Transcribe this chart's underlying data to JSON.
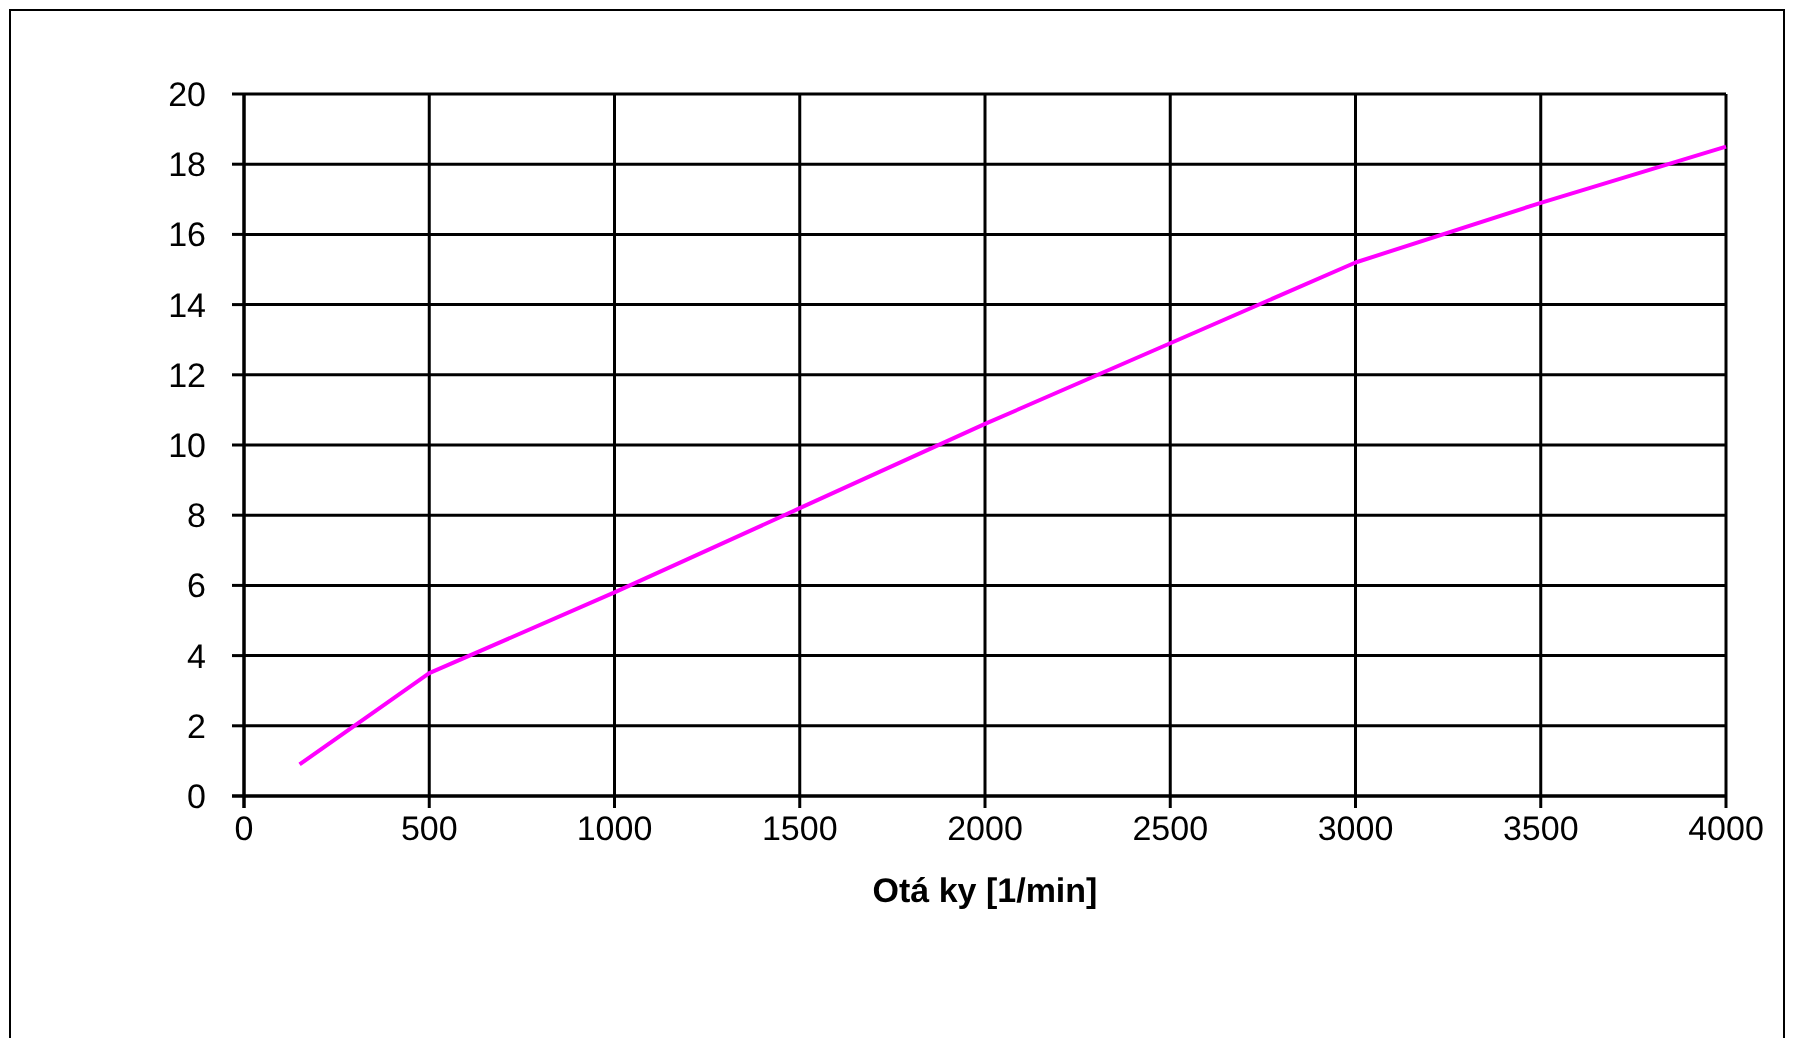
{
  "chart_data": {
    "type": "line",
    "xlabel": "Otá ky [1/min]",
    "x": [
      150,
      500,
      1000,
      1500,
      2000,
      2500,
      3000,
      3500,
      4000
    ],
    "series": [
      {
        "color": "#ff00ff",
        "values": [
          0.9,
          3.5,
          5.8,
          8.2,
          10.6,
          12.9,
          15.2,
          16.9,
          18.5
        ]
      }
    ],
    "xlim": [
      0,
      4000
    ],
    "xticks": [
      0,
      500,
      1000,
      1500,
      2000,
      2500,
      3000,
      3500,
      4000
    ],
    "ylim": [
      0,
      20
    ],
    "yticks": [
      0,
      2,
      4,
      6,
      8,
      10,
      12,
      14,
      16,
      18,
      20
    ],
    "grid": true,
    "marker": "none",
    "line_style": "solid"
  }
}
